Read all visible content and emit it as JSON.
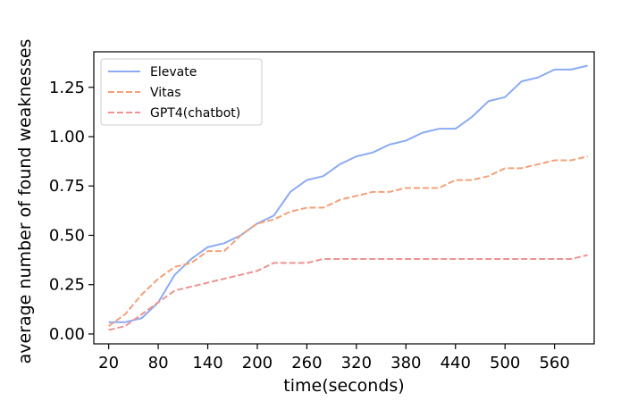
{
  "chart_data": {
    "type": "line",
    "title": "",
    "xlabel": "time(seconds)",
    "ylabel": "average number of found weaknesses",
    "xlim": [
      2,
      608
    ],
    "ylim": [
      -0.05,
      1.43
    ],
    "xticks": [
      20,
      80,
      140,
      200,
      260,
      320,
      380,
      440,
      500,
      560
    ],
    "yticks": [
      0.0,
      0.25,
      0.5,
      0.75,
      1.0,
      1.25
    ],
    "ytick_labels": [
      "0.00",
      "0.25",
      "0.50",
      "0.75",
      "1.00",
      "1.25"
    ],
    "grid": false,
    "legend_position": "top-left",
    "x": [
      20,
      40,
      60,
      80,
      100,
      120,
      140,
      160,
      180,
      200,
      220,
      240,
      260,
      280,
      300,
      320,
      340,
      360,
      380,
      400,
      420,
      440,
      460,
      480,
      500,
      520,
      540,
      560,
      580,
      600
    ],
    "series": [
      {
        "name": "Elevate",
        "color": "#8cabf2",
        "dash": "solid",
        "values": [
          0.06,
          0.06,
          0.08,
          0.16,
          0.3,
          0.38,
          0.44,
          0.46,
          0.5,
          0.56,
          0.6,
          0.72,
          0.78,
          0.8,
          0.86,
          0.9,
          0.92,
          0.96,
          0.98,
          1.02,
          1.04,
          1.04,
          1.1,
          1.18,
          1.2,
          1.28,
          1.3,
          1.34,
          1.34,
          1.36
        ]
      },
      {
        "name": "Vitas",
        "color": "#f4a07a",
        "dash": "dashed",
        "values": [
          0.04,
          0.1,
          0.2,
          0.28,
          0.34,
          0.36,
          0.42,
          0.42,
          0.5,
          0.56,
          0.58,
          0.62,
          0.64,
          0.64,
          0.68,
          0.7,
          0.72,
          0.72,
          0.74,
          0.74,
          0.74,
          0.78,
          0.78,
          0.8,
          0.84,
          0.84,
          0.86,
          0.88,
          0.88,
          0.9
        ]
      },
      {
        "name": "GPT4(chatbot)",
        "color": "#ee9292",
        "dash": "dashed",
        "values": [
          0.02,
          0.04,
          0.1,
          0.16,
          0.22,
          0.24,
          0.26,
          0.28,
          0.3,
          0.32,
          0.36,
          0.36,
          0.36,
          0.38,
          0.38,
          0.38,
          0.38,
          0.38,
          0.38,
          0.38,
          0.38,
          0.38,
          0.38,
          0.38,
          0.38,
          0.38,
          0.38,
          0.38,
          0.38,
          0.4
        ]
      }
    ]
  }
}
